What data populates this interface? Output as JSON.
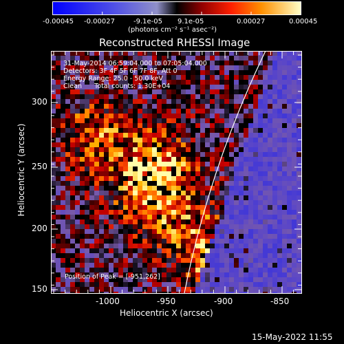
{
  "colorbar": {
    "tick_labels": [
      "-0.00045",
      "-0.00027",
      "-9.1e-05",
      "9.1e-05",
      "0.00027",
      "0.00045"
    ],
    "units_label": "(photons cm⁻² s⁻¹ asec⁻²)"
  },
  "plot": {
    "title": "Reconstructed RHESSI Image",
    "info_lines": [
      "31-May-2014 06:59:04.000 to 07:05:04.000",
      "Detectors: 3F 4F 5F 6F 7F 8F, Att 0",
      "Energy Range: 25.0 - 50.0 keV",
      "Clean      Total counts: 1.30E+04"
    ],
    "peak_text": "Position of Peak = [-951,262]",
    "x_axis_label": "Heliocentric X (arcsec)",
    "y_axis_label": "Heliocentric Y (arcsec)",
    "x_ticks": [
      "-1000",
      "-950",
      "-900",
      "-850"
    ],
    "y_ticks": [
      "150",
      "200",
      "250",
      "300"
    ]
  },
  "footer": {
    "timestamp": "15-May-2022 11:55"
  },
  "colors": {
    "background": "#000000",
    "limb_line": "#ffffff",
    "colormap": [
      "#0000ff",
      "#3c3cff",
      "#7864b4",
      "#ffffff",
      "#000000",
      "#7a0000",
      "#e00000",
      "#ff7a00",
      "#ffd000",
      "#ffffa0"
    ]
  }
}
